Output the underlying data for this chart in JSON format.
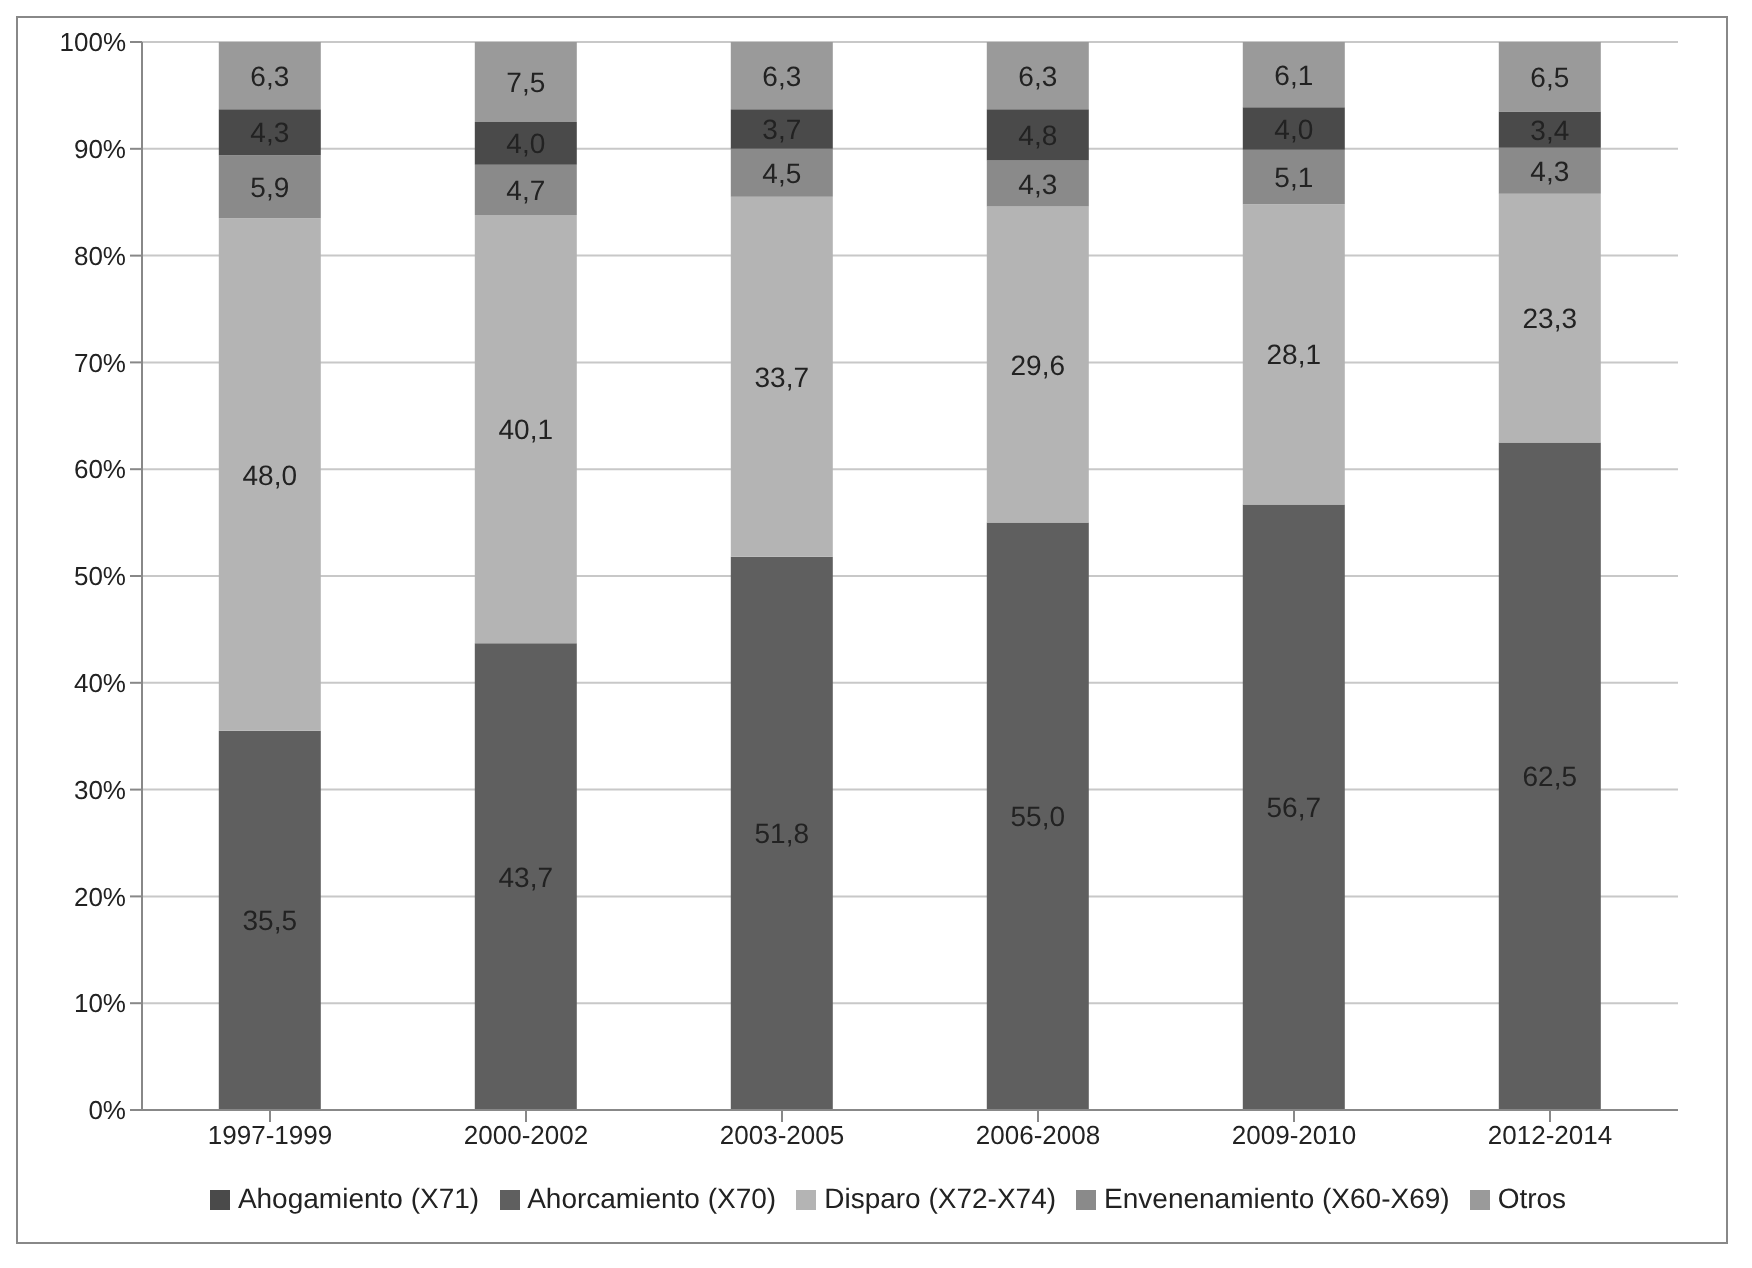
{
  "chart_data": {
    "type": "bar",
    "stacked": true,
    "categories": [
      "1997-1999",
      "2000-2002",
      "2003-2005",
      "2006-2008",
      "2009-2010",
      "2012-2014"
    ],
    "series": [
      {
        "name": "Ahorcamiento (X70)",
        "color": "#5f5f5f",
        "values": [
          35.5,
          43.7,
          51.8,
          55.0,
          56.7,
          62.5
        ],
        "value_labels": [
          "35,5",
          "43,7",
          "51,8",
          "55,0",
          "56,7",
          "62,5"
        ]
      },
      {
        "name": "Disparo (X72-X74)",
        "color": "#b4b4b4",
        "values": [
          48.0,
          40.1,
          33.7,
          29.6,
          28.1,
          23.3
        ],
        "value_labels": [
          "48,0",
          "40,1",
          "33,7",
          "29,6",
          "28,1",
          "23,3"
        ]
      },
      {
        "name": "Envenenamiento (X60-X69)",
        "color": "#8a8a8a",
        "values": [
          5.9,
          4.7,
          4.5,
          4.3,
          5.1,
          4.3
        ],
        "value_labels": [
          "5,9",
          "4,7",
          "4,5",
          "4,3",
          "5,1",
          "4,3"
        ]
      },
      {
        "name": "Ahogamiento (X71)",
        "color": "#4a4a4a",
        "values": [
          4.3,
          4.0,
          3.7,
          4.8,
          4.0,
          3.4
        ],
        "value_labels": [
          "4,3",
          "4,0",
          "3,7",
          "4,8",
          "4,0",
          "3,4"
        ]
      },
      {
        "name": "Otros",
        "color": "#9a9a9a",
        "values": [
          6.3,
          7.5,
          6.3,
          6.3,
          6.1,
          6.5
        ],
        "value_labels": [
          "6,3",
          "7,5",
          "6,3",
          "6,3",
          "6,1",
          "6,5"
        ]
      }
    ],
    "ylim": [
      0,
      100
    ],
    "yticks": [
      {
        "value": 0,
        "label": "0%"
      },
      {
        "value": 10,
        "label": "10%"
      },
      {
        "value": 20,
        "label": "20%"
      },
      {
        "value": 30,
        "label": "30%"
      },
      {
        "value": 40,
        "label": "40%"
      },
      {
        "value": 50,
        "label": "50%"
      },
      {
        "value": 60,
        "label": "60%"
      },
      {
        "value": 70,
        "label": "70%"
      },
      {
        "value": 80,
        "label": "80%"
      },
      {
        "value": 90,
        "label": "90%"
      },
      {
        "value": 100,
        "label": "100%"
      }
    ],
    "grid": "y",
    "legend": "bottom"
  }
}
